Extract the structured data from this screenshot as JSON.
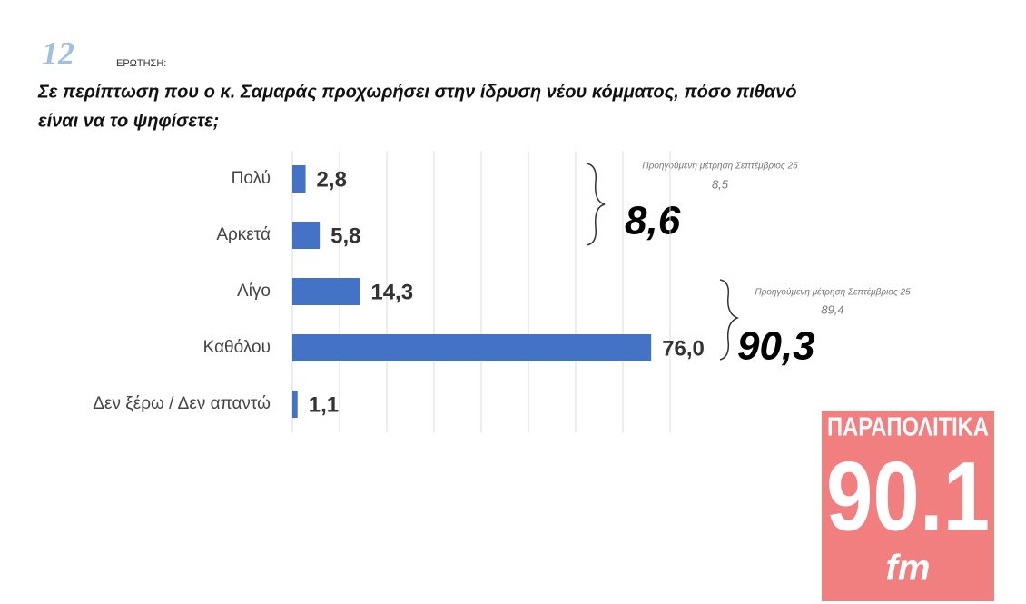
{
  "chart_data": {
    "type": "bar",
    "orientation": "horizontal",
    "question_number": "12",
    "question_label": "ΕΡΩΤΗΣΗ:",
    "title": [
      "Σε περίπτωση που ο κ. Σαμαράς προχωρήσει στην ίδρυση νέου κόμματος, πόσο πιθανό",
      "είναι να το ψηφίσετε;"
    ],
    "categories": [
      "Πολύ",
      "Αρκετά",
      "Λίγο",
      "Καθόλου",
      "Δεν ξέρω / Δεν απαντώ"
    ],
    "values": [
      2.8,
      5.8,
      14.3,
      76.0,
      1.1
    ],
    "value_labels": [
      "2,8",
      "5,8",
      "14,3",
      "76,0",
      "1,1"
    ],
    "color": "#4472c4",
    "xlim": [
      0,
      80
    ],
    "xticks": [
      0,
      10,
      20,
      30,
      40,
      50,
      60,
      70,
      80
    ],
    "grid": true,
    "annotations": [
      {
        "note": "Προηγούμενη μέτρηση Σεπτέμβριος 25",
        "previous": "8,5",
        "total": "8,6"
      },
      {
        "note": "Προηγούμενη μέτρηση Σεπτέμβριος 25",
        "previous": "89,4",
        "total": "90,3"
      }
    ]
  },
  "logo": {
    "name": "ΠΑΡΑΠΟΛΙΤΙΚΑ",
    "frequency": "90.1",
    "band": "fm"
  }
}
